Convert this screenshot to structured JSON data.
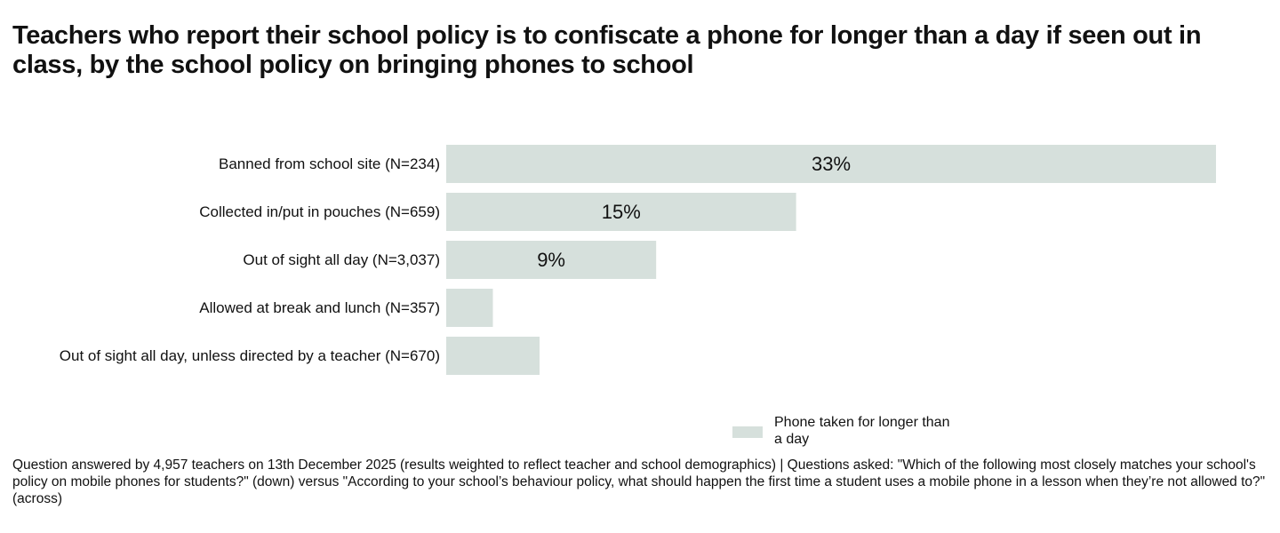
{
  "title": "Teachers who report their school policy is to confiscate a phone for longer than a day if seen out in class, by the school policy on bringing phones to school",
  "colors": {
    "bar": "#d6e0dc",
    "text": "#111111"
  },
  "legend": {
    "label": "Phone taken for longer than a day"
  },
  "footnote": "Question answered by 4,957 teachers on 13th December 2025 (results weighted to reflect teacher and school demographics) | Questions asked: \"Which of the following most closely matches your school's policy on mobile phones for students?\" (down) versus \"According to your school’s behaviour policy, what should happen the first time a student uses a mobile phone in a lesson when they’re not allowed to?\" (across)",
  "chart_data": {
    "type": "bar",
    "orientation": "horizontal",
    "categories": [
      "Banned from school site (N=234)",
      "Collected in/put in pouches (N=659)",
      "Out of sight all day (N=3,037)",
      "Allowed at break and lunch (N=357)",
      "Out of sight all day, unless directed by a teacher (N=670)"
    ],
    "series": [
      {
        "name": "Phone taken for longer than a day",
        "values": [
          33,
          15,
          9,
          2,
          4
        ],
        "labels": [
          "33%",
          "15%",
          "9%",
          "",
          ""
        ]
      }
    ],
    "xlim": [
      0,
      33
    ],
    "grid": false,
    "legend_position": "bottom-center"
  }
}
